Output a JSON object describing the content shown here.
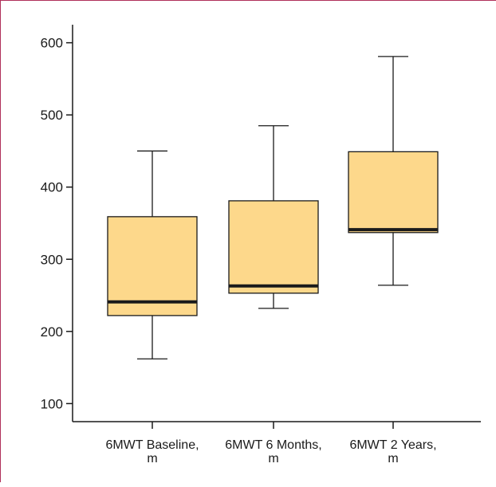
{
  "chart_data": {
    "type": "boxplot",
    "title": "",
    "xlabel": "",
    "ylabel": "",
    "ylim": [
      75,
      625
    ],
    "y_ticks": [
      100,
      200,
      300,
      400,
      500,
      600
    ],
    "y_tick_labels": [
      "100",
      "200",
      "300",
      "400",
      "500",
      "600"
    ],
    "categories": [
      {
        "line1": "6MWT Baseline,",
        "line2": "m"
      },
      {
        "line1": "6MWT 6 Months,",
        "line2": "m"
      },
      {
        "line1": "6MWT 2 Years,",
        "line2": "m"
      }
    ],
    "boxes": [
      {
        "min": 162,
        "q1": 222,
        "median": 241,
        "q3": 359,
        "max": 450
      },
      {
        "min": 232,
        "q1": 253,
        "median": 263,
        "q3": 381,
        "max": 485
      },
      {
        "min": 264,
        "q1": 337,
        "median": 341,
        "q3": 449,
        "max": 581
      }
    ],
    "colors": {
      "box_fill": "#fdd88b",
      "box_stroke": "#1a1a1a",
      "median": "#1a1a1a",
      "frame": "#b0305a"
    }
  }
}
